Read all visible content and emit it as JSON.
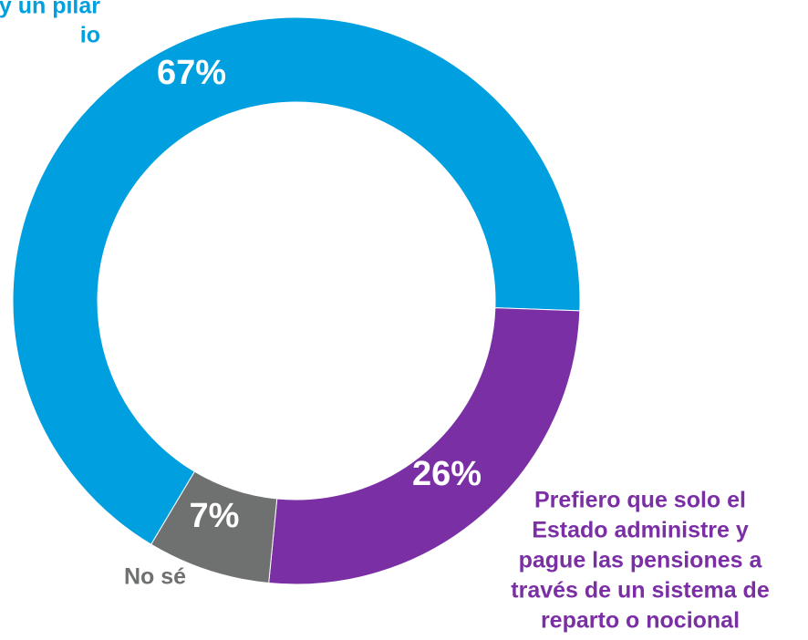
{
  "chart_data": {
    "type": "donut",
    "categories": [
      [
        "tatal y un pilar",
        "io"
      ],
      [
        "Prefiero que solo el",
        "Estado administre y",
        "pague las pensiones a",
        "través de un sistema de",
        "reparto o nocional"
      ],
      [
        "No sé"
      ]
    ],
    "values": [
      67,
      26,
      7
    ],
    "value_labels": [
      "67%",
      "26%",
      "7%"
    ],
    "colors": [
      "#009fdf",
      "#7b2fa5",
      "#6f7070"
    ]
  }
}
